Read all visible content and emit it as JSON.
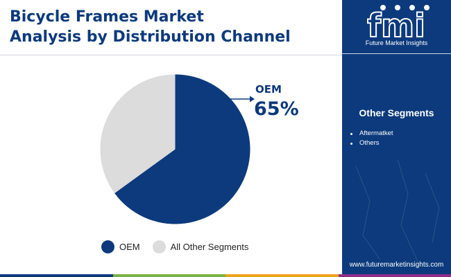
{
  "header": {
    "title_line1": "Bicycle Frames Market",
    "title_line2": "Analysis by Distribution Channel"
  },
  "chart_data": {
    "type": "pie",
    "title": "Bicycle Frames Market Analysis by Distribution Channel",
    "slices": [
      {
        "label": "OEM",
        "value": 65,
        "color": "#0c3a7c"
      },
      {
        "label": "All Other Segments",
        "value": 35,
        "color": "#dcdcdc"
      }
    ],
    "start_angle": "12 o'clock, clockwise",
    "callout": {
      "label": "OEM",
      "value": "65%"
    },
    "legend": {
      "placement": "bottom",
      "entries": [
        {
          "label": "OEM",
          "color": "#0c3a7c"
        },
        {
          "label": "All Other Segments",
          "color": "#dcdcdc"
        }
      ]
    }
  },
  "sidebar": {
    "brand": "Future Market Insights",
    "logo_text": "fmi",
    "heading": "Other Segments",
    "items": [
      "Aftermatket",
      "Others"
    ],
    "website": "www.futuremarketinsights.com"
  },
  "colors": {
    "primary": "#0c3a7c",
    "other_segments": "#dcdcdc",
    "bottom_bar": [
      "#0c3a7c",
      "#7ab342",
      "#f0a21c",
      "#8e2f8b"
    ]
  }
}
